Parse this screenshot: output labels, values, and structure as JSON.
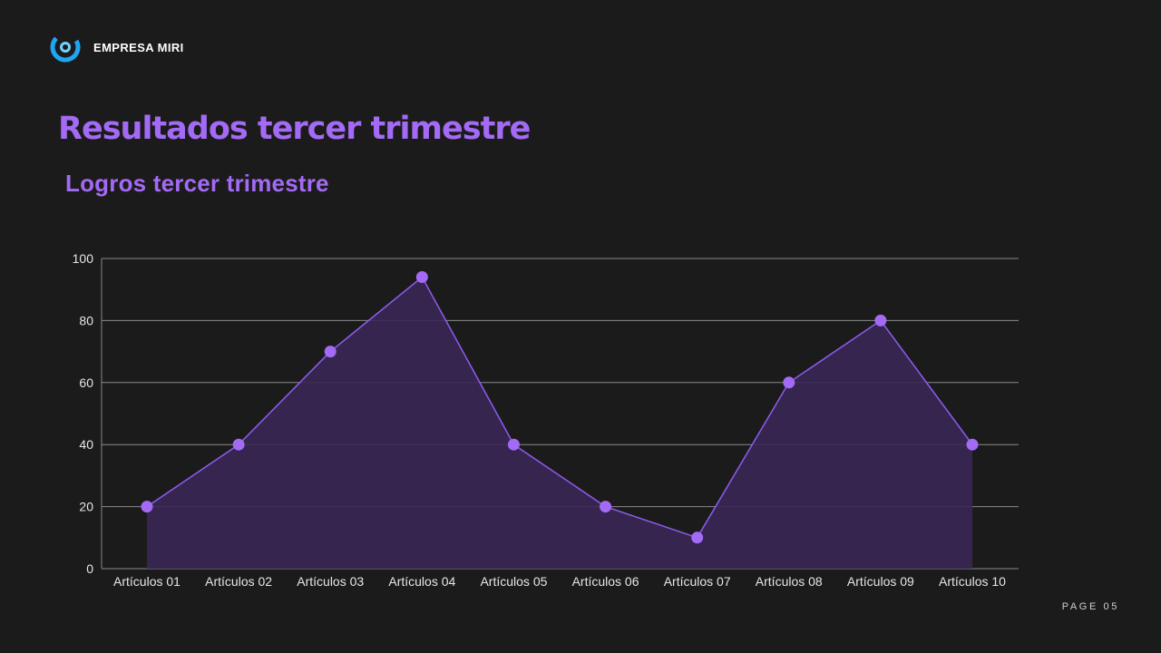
{
  "brand": {
    "name": "EMPRESA MIRI",
    "logo_icon": "circular-swirl-logo-icon",
    "logo_colors": [
      "#1ea6f2",
      "#6fd1ff"
    ]
  },
  "title": "Resultados tercer trimestre",
  "subtitle": "Logros tercer trimestre",
  "page_label": "PAGE 05",
  "colors": {
    "background": "#1c1b1c",
    "accent": "#a36af5",
    "line": "#8c5cf0",
    "area_fill": "#3a2855",
    "marker": "#a36af5",
    "grid": "#8a8a8a",
    "tick_text": "#e6e6e6"
  },
  "chart_data": {
    "type": "area",
    "categories": [
      "Artículos 01",
      "Artículos 02",
      "Artículos 03",
      "Artículos 04",
      "Artículos 05",
      "Artículos 06",
      "Artículos 07",
      "Artículos 08",
      "Artículos 09",
      "Artículos 10"
    ],
    "series": [
      {
        "values": [
          20,
          40,
          70,
          94,
          40,
          20,
          10,
          60,
          80,
          40
        ]
      }
    ],
    "ylim": [
      0,
      100
    ],
    "yticks": [
      0,
      20,
      40,
      60,
      80,
      100
    ],
    "grid": true,
    "legend": "none",
    "markers": true
  }
}
